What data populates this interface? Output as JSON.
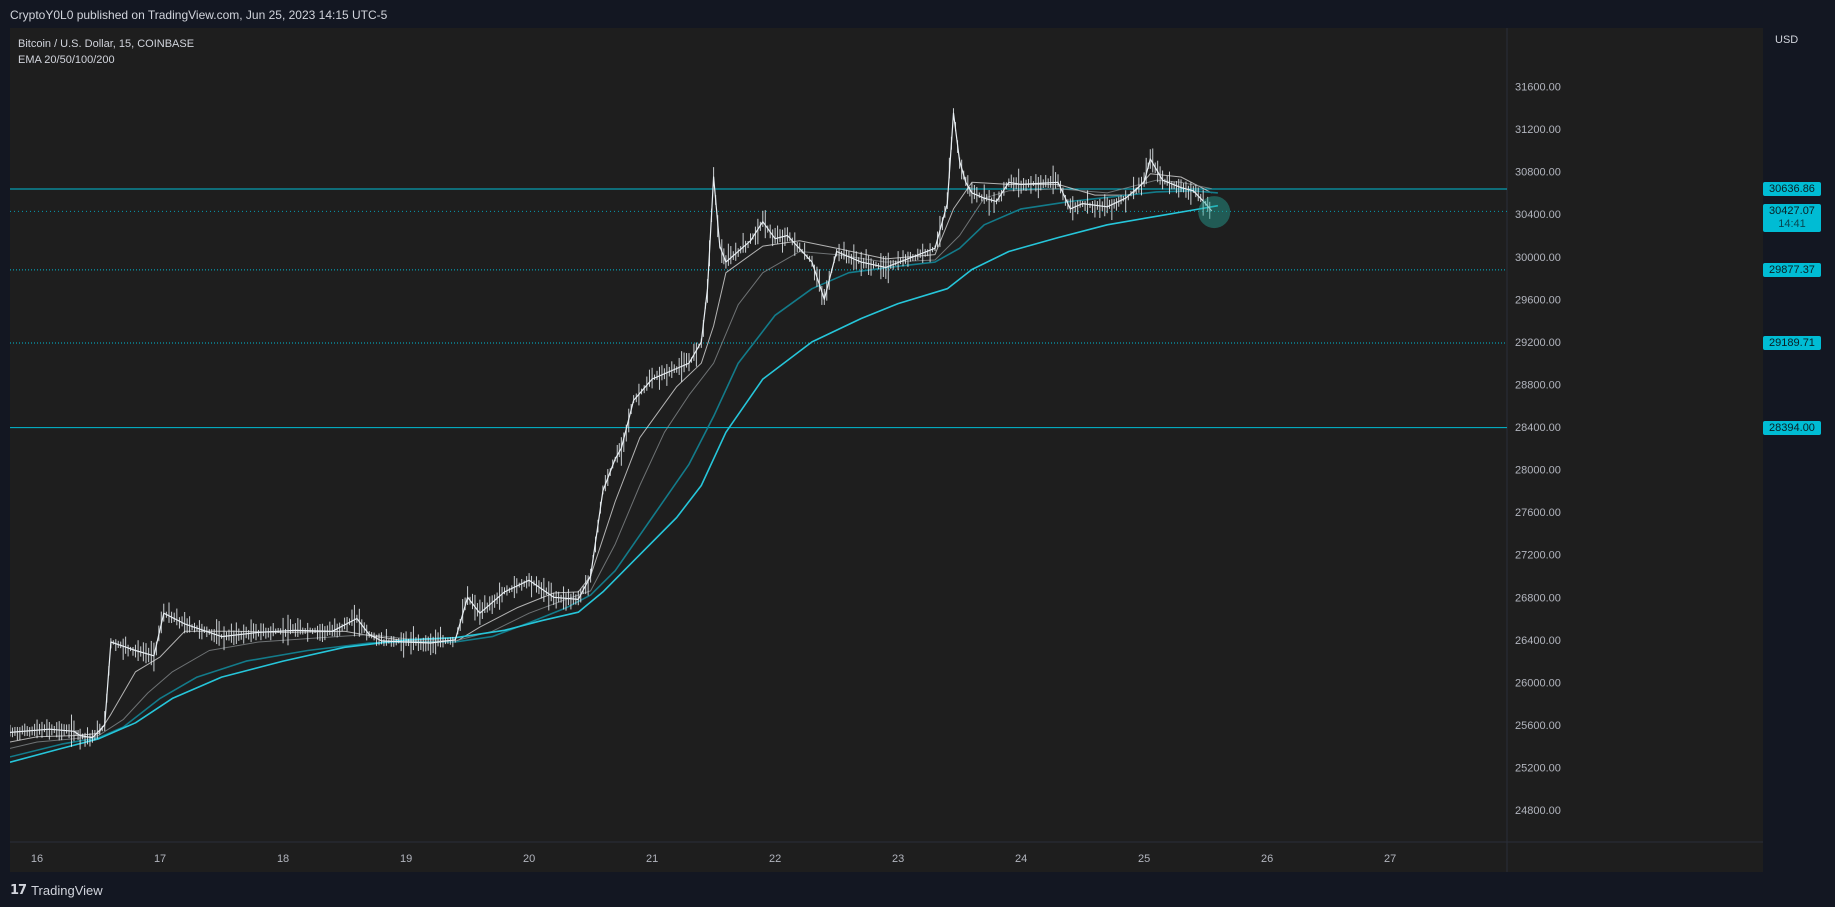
{
  "header": {
    "published": "CryptoY0L0 published on TradingView.com, Jun 25, 2023 14:15 UTC-5"
  },
  "legend": {
    "symbol": "Bitcoin / U.S. Dollar, 15, COINBASE",
    "indicator": "EMA 20/50/100/200"
  },
  "axis": {
    "currency": "USD"
  },
  "footer": {
    "brand": "TradingView",
    "brand_mark": "17"
  },
  "colors": {
    "background": "#1e1e1e",
    "frame": "#131722",
    "level": "#00bcd4",
    "candle": "#e8eef2",
    "ema20": "#e6e6e6",
    "ema50": "#8a8f92",
    "ema100": "#137b8a",
    "ema200": "#26c6da"
  },
  "chart_data": {
    "type": "line",
    "title": "Bitcoin / U.S. Dollar, 15, COINBASE",
    "ylim": [
      24500,
      32150
    ],
    "xlim": [
      15.78,
      27.95
    ],
    "y_ticks": [
      31600,
      31200,
      30800,
      30400,
      30000,
      29600,
      29200,
      28800,
      28400,
      28000,
      27600,
      27200,
      26800,
      26400,
      26000,
      25600,
      25200,
      24800
    ],
    "y_tick_labels": [
      "31600.00",
      "31200.00",
      "30800.00",
      "30400.00",
      "30000.00",
      "29600.00",
      "29200.00",
      "28800.00",
      "28400.00",
      "28000.00",
      "27600.00",
      "27200.00",
      "26800.00",
      "26400.00",
      "26000.00",
      "25600.00",
      "25200.00",
      "24800.00"
    ],
    "x_ticks": [
      16,
      17,
      18,
      19,
      20,
      21,
      22,
      23,
      24,
      25,
      26,
      27
    ],
    "x_tick_labels": [
      "16",
      "17",
      "18",
      "19",
      "20",
      "21",
      "22",
      "23",
      "24",
      "25",
      "26",
      "27"
    ],
    "grid": false,
    "price": {
      "x": [
        15.78,
        16.1,
        16.3,
        16.35,
        16.45,
        16.55,
        16.6,
        16.8,
        16.95,
        17.03,
        17.2,
        17.5,
        17.8,
        18.1,
        18.4,
        18.6,
        18.7,
        18.8,
        19.0,
        19.2,
        19.4,
        19.5,
        19.6,
        19.8,
        20.0,
        20.2,
        20.4,
        20.5,
        20.6,
        20.7,
        20.75,
        20.85,
        21.0,
        21.2,
        21.3,
        21.4,
        21.45,
        21.5,
        21.55,
        21.6,
        21.8,
        21.9,
        22.0,
        22.1,
        22.3,
        22.4,
        22.5,
        22.7,
        22.9,
        23.1,
        23.3,
        23.4,
        23.45,
        23.5,
        23.55,
        23.6,
        23.7,
        23.8,
        23.9,
        24.0,
        24.3,
        24.4,
        24.5,
        24.7,
        24.85,
        25.0,
        25.05,
        25.15,
        25.3,
        25.4,
        25.5,
        25.55
      ],
      "y": [
        25530,
        25560,
        25540,
        25500,
        25480,
        25600,
        26380,
        26300,
        26250,
        26650,
        26550,
        26430,
        26470,
        26490,
        26480,
        26600,
        26450,
        26390,
        26380,
        26370,
        26400,
        26800,
        26650,
        26850,
        26960,
        26800,
        26780,
        27000,
        27800,
        28100,
        28200,
        28650,
        28850,
        28950,
        29000,
        29200,
        29700,
        30750,
        30100,
        29950,
        30150,
        30330,
        30170,
        30200,
        29950,
        29600,
        30050,
        29950,
        29900,
        29990,
        30080,
        30500,
        31350,
        30900,
        30700,
        30600,
        30550,
        30520,
        30700,
        30680,
        30700,
        30450,
        30500,
        30470,
        30550,
        30700,
        30920,
        30720,
        30650,
        30620,
        30500,
        30430
      ]
    },
    "series": [
      {
        "x": [
          15.78,
          16.0,
          16.3,
          16.5,
          16.6,
          16.8,
          17.0,
          17.2,
          17.6,
          18.0,
          18.5,
          18.7,
          19.0,
          19.4,
          19.6,
          19.9,
          20.2,
          20.4,
          20.5,
          20.7,
          20.9,
          21.2,
          21.4,
          21.5,
          21.6,
          21.9,
          22.2,
          22.5,
          22.9,
          23.3,
          23.45,
          23.6,
          23.9,
          24.3,
          24.6,
          24.9,
          25.05,
          25.3,
          25.55
        ],
        "y": [
          25440,
          25490,
          25500,
          25520,
          25700,
          26100,
          26240,
          26480,
          26480,
          26470,
          26480,
          26440,
          26390,
          26380,
          26520,
          26700,
          26840,
          26850,
          27000,
          27700,
          28300,
          28780,
          29000,
          29350,
          29850,
          30100,
          30150,
          30080,
          29980,
          30020,
          30450,
          30700,
          30680,
          30680,
          30580,
          30580,
          30780,
          30750,
          30600
        ]
      },
      {
        "x": [
          15.78,
          16.0,
          16.3,
          16.5,
          16.7,
          16.9,
          17.1,
          17.4,
          17.8,
          18.3,
          18.7,
          19.0,
          19.4,
          19.7,
          20.0,
          20.3,
          20.5,
          20.7,
          20.9,
          21.1,
          21.3,
          21.5,
          21.7,
          21.9,
          22.2,
          22.5,
          22.9,
          23.3,
          23.5,
          23.7,
          23.9,
          24.3,
          24.7,
          25.1,
          25.3,
          25.55
        ],
        "y": [
          25380,
          25440,
          25470,
          25500,
          25650,
          25900,
          26100,
          26300,
          26380,
          26420,
          26450,
          26410,
          26390,
          26480,
          26650,
          26780,
          26860,
          27300,
          27850,
          28350,
          28700,
          29000,
          29550,
          29850,
          30050,
          30020,
          29950,
          29970,
          30200,
          30550,
          30620,
          30640,
          30600,
          30720,
          30700,
          30640
        ]
      },
      {
        "x": [
          15.78,
          16.2,
          16.5,
          16.7,
          17.0,
          17.3,
          17.7,
          18.2,
          18.7,
          19.0,
          19.4,
          19.7,
          20.0,
          20.3,
          20.5,
          20.7,
          21.0,
          21.3,
          21.5,
          21.7,
          22.0,
          22.3,
          22.6,
          23.0,
          23.3,
          23.5,
          23.7,
          24.0,
          24.4,
          24.8,
          25.1,
          25.4,
          25.6
        ],
        "y": [
          25300,
          25420,
          25480,
          25580,
          25850,
          26050,
          26200,
          26300,
          26370,
          26380,
          26380,
          26430,
          26560,
          26700,
          26820,
          27050,
          27550,
          28050,
          28500,
          29000,
          29450,
          29700,
          29850,
          29910,
          29950,
          30080,
          30300,
          30450,
          30520,
          30570,
          30610,
          30620,
          30600
        ]
      },
      {
        "x": [
          15.78,
          16.2,
          16.5,
          16.8,
          17.1,
          17.5,
          18.0,
          18.5,
          19.0,
          19.4,
          19.8,
          20.1,
          20.4,
          20.6,
          20.9,
          21.2,
          21.4,
          21.6,
          21.9,
          22.3,
          22.7,
          23.0,
          23.4,
          23.6,
          23.9,
          24.3,
          24.7,
          25.1,
          25.4,
          25.6
        ],
        "y": [
          25250,
          25380,
          25470,
          25620,
          25850,
          26050,
          26200,
          26330,
          26400,
          26420,
          26490,
          26580,
          26660,
          26850,
          27200,
          27550,
          27850,
          28350,
          28850,
          29200,
          29420,
          29560,
          29700,
          29880,
          30050,
          30180,
          30300,
          30380,
          30440,
          30480
        ]
      }
    ],
    "levels": [
      {
        "price": 30636.86,
        "label": "30636.86",
        "style": "solid"
      },
      {
        "price": 29877.37,
        "label": "29877.37",
        "style": "dotted"
      },
      {
        "price": 29189.71,
        "label": "29189.71",
        "style": "dotted"
      },
      {
        "price": 28394.0,
        "label": "28394.00",
        "style": "solid"
      }
    ],
    "last_price": {
      "price": 30427.07,
      "label": "30427.07",
      "countdown": "14:41"
    },
    "highlight": {
      "x": 25.57,
      "price": 30420
    }
  }
}
